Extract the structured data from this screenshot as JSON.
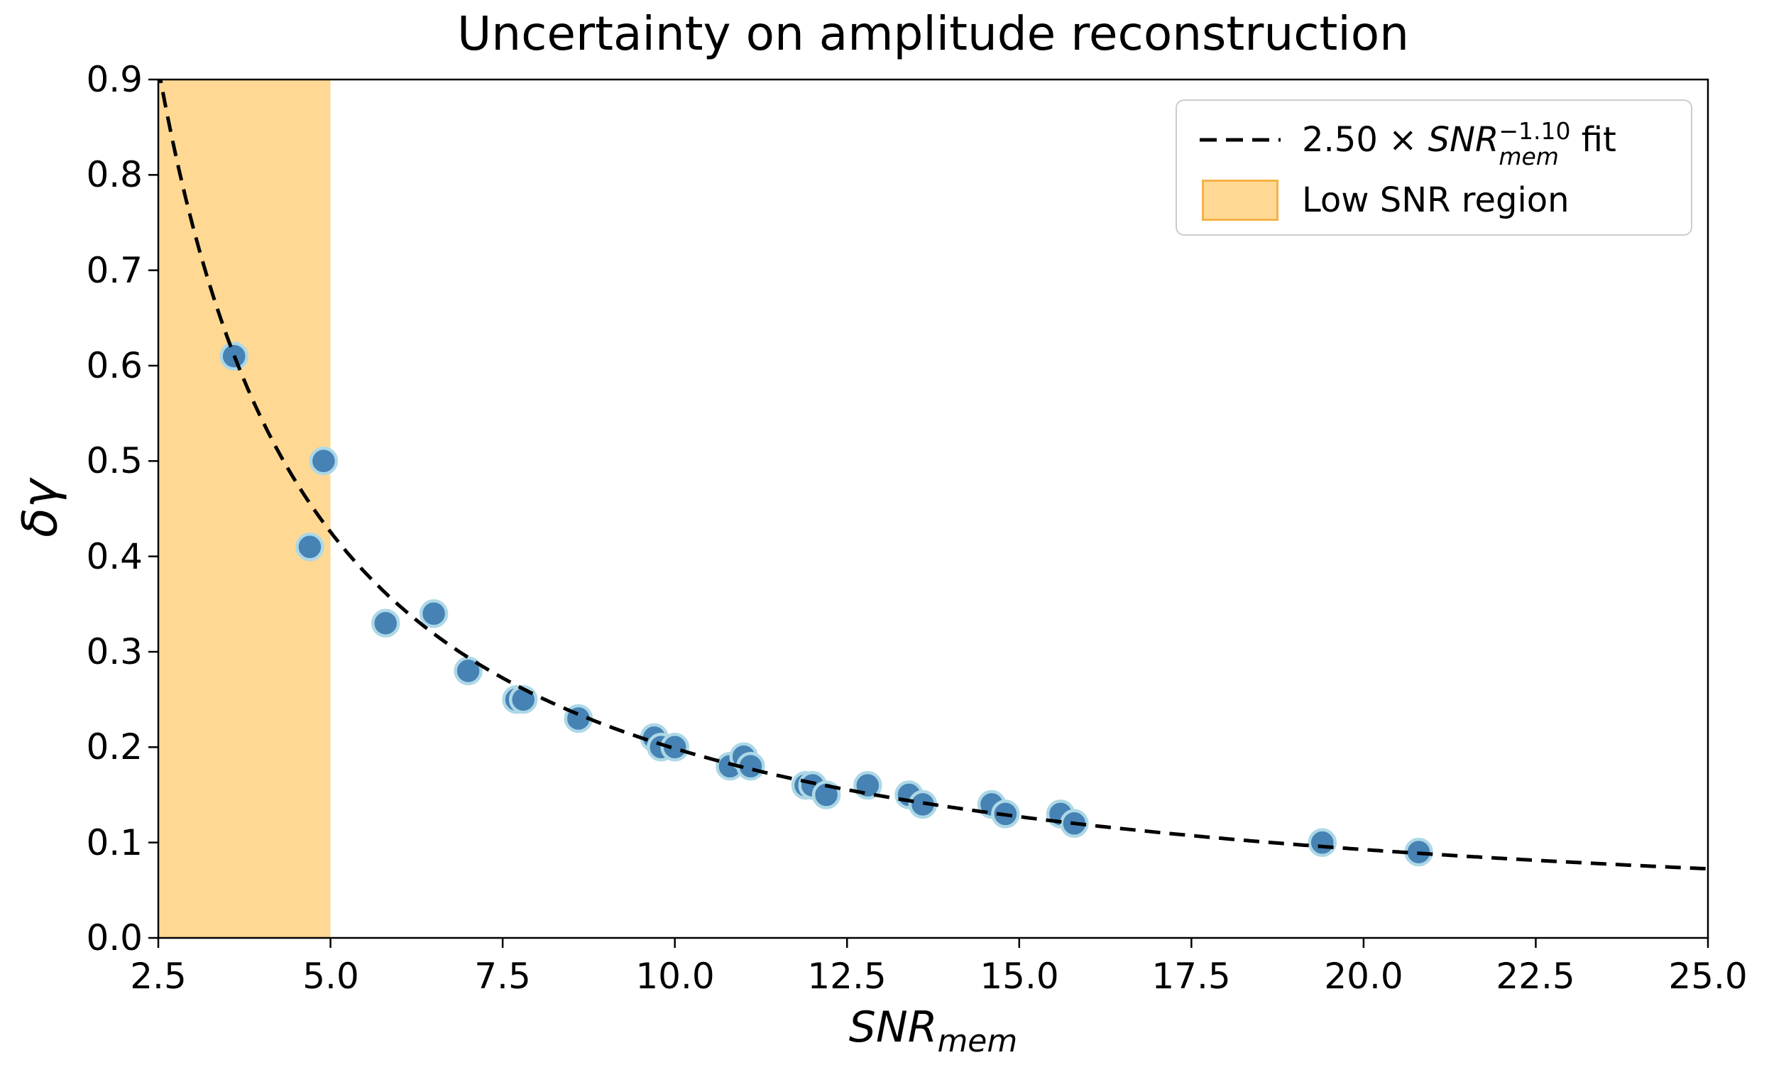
{
  "title": "Uncertainty on amplitude reconstruction",
  "axes": {
    "xlabel": {
      "main": "SNR",
      "sub": "mem"
    },
    "ylabel": "δγ"
  },
  "legend": {
    "fit_entry": {
      "prefix": "2.50 × ",
      "var": "SNR",
      "sup": "−1.10",
      "sub": "mem",
      "suffix": " fit"
    },
    "region_entry": "Low SNR region"
  },
  "chart_data": {
    "type": "scatter",
    "title": "Uncertainty on amplitude reconstruction",
    "xlabel": "SNR_mem",
    "ylabel": "δγ",
    "xlim": [
      2.5,
      25.0
    ],
    "ylim": [
      0.0,
      0.9
    ],
    "grid": false,
    "legend_position": "upper right",
    "x_ticks": [
      2.5,
      5.0,
      7.5,
      10.0,
      12.5,
      15.0,
      17.5,
      20.0,
      22.5,
      25.0
    ],
    "x_tick_labels": [
      "2.5",
      "5.0",
      "7.5",
      "10.0",
      "12.5",
      "15.0",
      "17.5",
      "20.0",
      "22.5",
      "25.0"
    ],
    "y_ticks": [
      0.0,
      0.1,
      0.2,
      0.3,
      0.4,
      0.5,
      0.6,
      0.7,
      0.8,
      0.9
    ],
    "y_tick_labels": [
      "0.0",
      "0.1",
      "0.2",
      "0.3",
      "0.4",
      "0.5",
      "0.6",
      "0.7",
      "0.8",
      "0.9"
    ],
    "points": [
      [
        3.6,
        0.61
      ],
      [
        4.7,
        0.41
      ],
      [
        4.9,
        0.5
      ],
      [
        5.8,
        0.33
      ],
      [
        6.5,
        0.34
      ],
      [
        7.0,
        0.28
      ],
      [
        7.7,
        0.25
      ],
      [
        7.8,
        0.25
      ],
      [
        8.6,
        0.23
      ],
      [
        9.7,
        0.21
      ],
      [
        9.8,
        0.2
      ],
      [
        10.0,
        0.2
      ],
      [
        10.8,
        0.18
      ],
      [
        11.0,
        0.19
      ],
      [
        11.1,
        0.18
      ],
      [
        11.9,
        0.16
      ],
      [
        12.0,
        0.16
      ],
      [
        12.2,
        0.15
      ],
      [
        12.8,
        0.16
      ],
      [
        13.4,
        0.15
      ],
      [
        13.6,
        0.14
      ],
      [
        14.6,
        0.14
      ],
      [
        14.8,
        0.13
      ],
      [
        15.6,
        0.13
      ],
      [
        15.8,
        0.12
      ],
      [
        19.4,
        0.1
      ],
      [
        20.8,
        0.09
      ]
    ],
    "fit": {
      "coefficient": 2.5,
      "exponent": -1.1,
      "label": "2.50 × SNR_mem^-1.10 fit",
      "line_style": "dashed"
    },
    "shaded_region": {
      "x_start": 2.5,
      "x_end": 5.0,
      "label": "Low SNR region"
    },
    "colors": {
      "scatter_fill": "#4682B4",
      "scatter_edge": "#ADD8E6",
      "fit_line": "#000000",
      "region_fill": "#FFA500",
      "region_alpha": 0.42
    }
  }
}
